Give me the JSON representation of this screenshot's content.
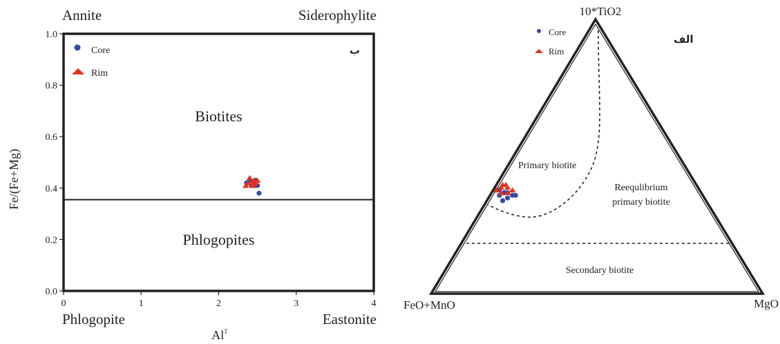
{
  "chart_data": [
    {
      "type": "scatter",
      "panel_label": "ب",
      "corner_labels": {
        "top_left": "Annite",
        "top_right": "Siderophylite",
        "bottom_left": "Phlogopite",
        "bottom_right": "Eastonite"
      },
      "xlabel": "Al",
      "xlabel_superscript": "T",
      "ylabel": "Fe/(Fe+Mg)",
      "xlim": [
        0,
        4
      ],
      "ylim": [
        0,
        1
      ],
      "xticks": [
        "0",
        "1",
        "2",
        "3",
        "4"
      ],
      "yticks": [
        "0.0",
        "0.2",
        "0.4",
        "0.6",
        "0.8",
        "1.0"
      ],
      "divider_y": 0.355,
      "field_labels": [
        {
          "text": "Biotites",
          "x": 2.0,
          "y": 0.66
        },
        {
          "text": "Phlogopites",
          "x": 2.0,
          "y": 0.18
        }
      ],
      "legend": {
        "position": "top-left",
        "entries": [
          "Core",
          "Rim"
        ]
      },
      "colors": {
        "core": "#3a49a6",
        "rim": "#e3321c",
        "frame": "#231f20"
      },
      "series": [
        {
          "name": "Core",
          "marker": "circle",
          "points": [
            [
              2.36,
              0.42
            ],
            [
              2.42,
              0.41
            ],
            [
              2.45,
              0.42
            ],
            [
              2.47,
              0.41
            ],
            [
              2.5,
              0.41
            ],
            [
              2.48,
              0.43
            ],
            [
              2.52,
              0.38
            ],
            [
              2.4,
              0.43
            ]
          ]
        },
        {
          "name": "Rim",
          "marker": "triangle",
          "points": [
            [
              2.38,
              0.42
            ],
            [
              2.4,
              0.44
            ],
            [
              2.43,
              0.42
            ],
            [
              2.45,
              0.43
            ],
            [
              2.47,
              0.42
            ],
            [
              2.5,
              0.43
            ],
            [
              2.44,
              0.41
            ],
            [
              2.35,
              0.41
            ]
          ]
        }
      ]
    },
    {
      "type": "ternary",
      "panel_label": "الف",
      "vertices": {
        "top": "10*TiO2",
        "left": "FeO+MnO",
        "right": "MgO"
      },
      "field_labels": {
        "primary": "Primary biotite",
        "reequilibrium_line1": "Reequlibrium",
        "reequilibrium_line2": "primary biotite",
        "secondary": "Secondary biotite"
      },
      "legend": {
        "position": "top-left",
        "entries": [
          "Core",
          "Rim"
        ]
      },
      "colors": {
        "core": "#3a49a6",
        "rim": "#e3321c",
        "frame": "#231f20"
      },
      "series": [
        {
          "name": "Core",
          "marker": "circle",
          "points": [
            [
              0.36,
              0.02
            ],
            [
              0.37,
              0.04
            ],
            [
              0.36,
              0.06
            ],
            [
              0.34,
              0.04
            ],
            [
              0.38,
              0.01
            ],
            [
              0.37,
              0.03
            ],
            [
              0.35,
              0.05
            ],
            [
              0.36,
              0.07
            ]
          ]
        },
        {
          "name": "Rim",
          "marker": "triangle",
          "points": [
            [
              0.38,
              0.0
            ],
            [
              0.39,
              0.01
            ],
            [
              0.4,
              0.02
            ],
            [
              0.37,
              0.04
            ],
            [
              0.39,
              0.03
            ],
            [
              0.4,
              0.01
            ],
            [
              0.38,
              0.05
            ],
            [
              0.37,
              0.02
            ]
          ]
        }
      ]
    }
  ]
}
